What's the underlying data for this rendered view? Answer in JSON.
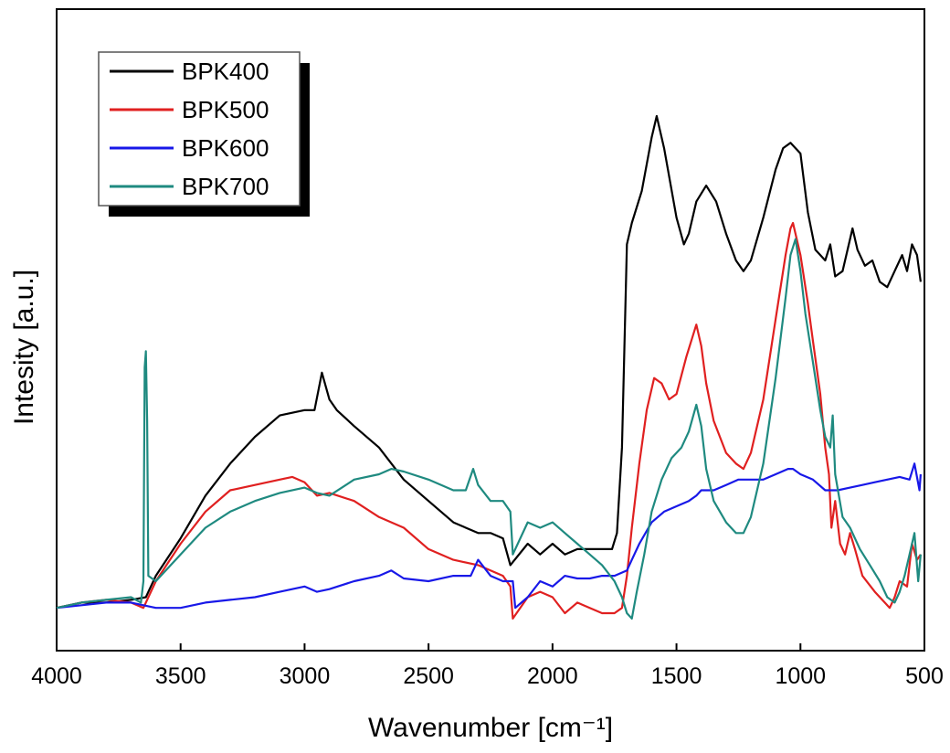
{
  "chart_data": {
    "type": "line",
    "xlabel": "Wavenumber [cm⁻¹]",
    "ylabel": "Intesity [a.u.]",
    "xlim": [
      4000,
      500
    ],
    "x_reversed": true,
    "ylim": [
      -0.08,
      1.12
    ],
    "yticks_visible": false,
    "xticks": [
      4000,
      3500,
      3000,
      2500,
      2000,
      1500,
      1000,
      500
    ],
    "xtick_labels": [
      "4000",
      "3500",
      "3000",
      "2500",
      "2000",
      "1500",
      "1000",
      "500"
    ],
    "grid": false,
    "legend_position": "top-left",
    "series": [
      {
        "name": "BPK400",
        "color": "#000000",
        "points": [
          [
            4000,
            0.0
          ],
          [
            3900,
            0.01
          ],
          [
            3800,
            0.01
          ],
          [
            3700,
            0.015
          ],
          [
            3640,
            0.02
          ],
          [
            3600,
            0.06
          ],
          [
            3500,
            0.13
          ],
          [
            3400,
            0.21
          ],
          [
            3300,
            0.27
          ],
          [
            3200,
            0.32
          ],
          [
            3100,
            0.36
          ],
          [
            3000,
            0.37
          ],
          [
            2960,
            0.37
          ],
          [
            2930,
            0.44
          ],
          [
            2900,
            0.39
          ],
          [
            2870,
            0.37
          ],
          [
            2800,
            0.34
          ],
          [
            2700,
            0.3
          ],
          [
            2600,
            0.24
          ],
          [
            2500,
            0.2
          ],
          [
            2400,
            0.16
          ],
          [
            2300,
            0.14
          ],
          [
            2250,
            0.14
          ],
          [
            2200,
            0.13
          ],
          [
            2170,
            0.08
          ],
          [
            2100,
            0.12
          ],
          [
            2050,
            0.1
          ],
          [
            2000,
            0.12
          ],
          [
            1950,
            0.1
          ],
          [
            1900,
            0.11
          ],
          [
            1850,
            0.11
          ],
          [
            1800,
            0.11
          ],
          [
            1760,
            0.11
          ],
          [
            1740,
            0.14
          ],
          [
            1720,
            0.3
          ],
          [
            1700,
            0.68
          ],
          [
            1680,
            0.72
          ],
          [
            1640,
            0.78
          ],
          [
            1600,
            0.88
          ],
          [
            1580,
            0.92
          ],
          [
            1550,
            0.86
          ],
          [
            1500,
            0.73
          ],
          [
            1470,
            0.68
          ],
          [
            1450,
            0.7
          ],
          [
            1420,
            0.76
          ],
          [
            1380,
            0.79
          ],
          [
            1340,
            0.76
          ],
          [
            1300,
            0.7
          ],
          [
            1260,
            0.65
          ],
          [
            1230,
            0.63
          ],
          [
            1200,
            0.65
          ],
          [
            1150,
            0.73
          ],
          [
            1100,
            0.82
          ],
          [
            1070,
            0.86
          ],
          [
            1040,
            0.87
          ],
          [
            1000,
            0.85
          ],
          [
            970,
            0.74
          ],
          [
            940,
            0.67
          ],
          [
            900,
            0.65
          ],
          [
            880,
            0.68
          ],
          [
            860,
            0.62
          ],
          [
            830,
            0.63
          ],
          [
            790,
            0.71
          ],
          [
            770,
            0.67
          ],
          [
            740,
            0.64
          ],
          [
            710,
            0.65
          ],
          [
            680,
            0.61
          ],
          [
            650,
            0.6
          ],
          [
            620,
            0.63
          ],
          [
            590,
            0.66
          ],
          [
            570,
            0.63
          ],
          [
            550,
            0.68
          ],
          [
            530,
            0.66
          ],
          [
            515,
            0.61
          ]
        ]
      },
      {
        "name": "BPK500",
        "color": "#e02020",
        "points": [
          [
            4000,
            0.0
          ],
          [
            3900,
            0.01
          ],
          [
            3800,
            0.015
          ],
          [
            3700,
            0.01
          ],
          [
            3650,
            0.0
          ],
          [
            3600,
            0.05
          ],
          [
            3500,
            0.12
          ],
          [
            3400,
            0.18
          ],
          [
            3300,
            0.22
          ],
          [
            3200,
            0.23
          ],
          [
            3100,
            0.24
          ],
          [
            3050,
            0.245
          ],
          [
            3000,
            0.235
          ],
          [
            2950,
            0.21
          ],
          [
            2900,
            0.215
          ],
          [
            2800,
            0.2
          ],
          [
            2700,
            0.17
          ],
          [
            2600,
            0.15
          ],
          [
            2500,
            0.11
          ],
          [
            2400,
            0.09
          ],
          [
            2300,
            0.08
          ],
          [
            2250,
            0.07
          ],
          [
            2200,
            0.06
          ],
          [
            2170,
            0.04
          ],
          [
            2160,
            -0.02
          ],
          [
            2100,
            0.02
          ],
          [
            2050,
            0.03
          ],
          [
            2000,
            0.02
          ],
          [
            1950,
            -0.01
          ],
          [
            1900,
            0.01
          ],
          [
            1850,
            0.0
          ],
          [
            1800,
            -0.01
          ],
          [
            1750,
            -0.01
          ],
          [
            1720,
            0.0
          ],
          [
            1700,
            0.06
          ],
          [
            1680,
            0.15
          ],
          [
            1650,
            0.27
          ],
          [
            1620,
            0.37
          ],
          [
            1590,
            0.43
          ],
          [
            1560,
            0.42
          ],
          [
            1530,
            0.39
          ],
          [
            1500,
            0.4
          ],
          [
            1460,
            0.47
          ],
          [
            1420,
            0.53
          ],
          [
            1400,
            0.49
          ],
          [
            1380,
            0.42
          ],
          [
            1350,
            0.35
          ],
          [
            1300,
            0.29
          ],
          [
            1260,
            0.27
          ],
          [
            1230,
            0.26
          ],
          [
            1200,
            0.29
          ],
          [
            1150,
            0.39
          ],
          [
            1100,
            0.54
          ],
          [
            1060,
            0.66
          ],
          [
            1040,
            0.71
          ],
          [
            1030,
            0.72
          ],
          [
            1000,
            0.66
          ],
          [
            970,
            0.57
          ],
          [
            950,
            0.5
          ],
          [
            920,
            0.4
          ],
          [
            900,
            0.3
          ],
          [
            885,
            0.25
          ],
          [
            875,
            0.15
          ],
          [
            860,
            0.2
          ],
          [
            840,
            0.12
          ],
          [
            820,
            0.1
          ],
          [
            800,
            0.14
          ],
          [
            780,
            0.11
          ],
          [
            750,
            0.06
          ],
          [
            700,
            0.03
          ],
          [
            660,
            0.01
          ],
          [
            640,
            0.0
          ],
          [
            620,
            0.02
          ],
          [
            600,
            0.05
          ],
          [
            570,
            0.04
          ],
          [
            550,
            0.12
          ],
          [
            530,
            0.09
          ],
          [
            515,
            0.1
          ]
        ]
      },
      {
        "name": "BPK600",
        "color": "#1818e8",
        "points": [
          [
            4000,
            0.0
          ],
          [
            3900,
            0.005
          ],
          [
            3800,
            0.01
          ],
          [
            3700,
            0.01
          ],
          [
            3600,
            0.0
          ],
          [
            3500,
            0.0
          ],
          [
            3400,
            0.01
          ],
          [
            3300,
            0.015
          ],
          [
            3200,
            0.02
          ],
          [
            3100,
            0.03
          ],
          [
            3000,
            0.04
          ],
          [
            2950,
            0.03
          ],
          [
            2900,
            0.035
          ],
          [
            2800,
            0.05
          ],
          [
            2700,
            0.06
          ],
          [
            2650,
            0.07
          ],
          [
            2600,
            0.055
          ],
          [
            2500,
            0.05
          ],
          [
            2400,
            0.06
          ],
          [
            2330,
            0.06
          ],
          [
            2300,
            0.09
          ],
          [
            2250,
            0.06
          ],
          [
            2200,
            0.05
          ],
          [
            2160,
            0.05
          ],
          [
            2150,
            0.0
          ],
          [
            2100,
            0.02
          ],
          [
            2050,
            0.05
          ],
          [
            2000,
            0.04
          ],
          [
            1950,
            0.06
          ],
          [
            1900,
            0.055
          ],
          [
            1850,
            0.055
          ],
          [
            1800,
            0.06
          ],
          [
            1750,
            0.06
          ],
          [
            1700,
            0.07
          ],
          [
            1680,
            0.09
          ],
          [
            1650,
            0.12
          ],
          [
            1600,
            0.16
          ],
          [
            1550,
            0.18
          ],
          [
            1500,
            0.19
          ],
          [
            1450,
            0.2
          ],
          [
            1420,
            0.21
          ],
          [
            1400,
            0.22
          ],
          [
            1350,
            0.22
          ],
          [
            1300,
            0.23
          ],
          [
            1250,
            0.24
          ],
          [
            1200,
            0.24
          ],
          [
            1150,
            0.24
          ],
          [
            1100,
            0.25
          ],
          [
            1050,
            0.26
          ],
          [
            1030,
            0.26
          ],
          [
            1000,
            0.25
          ],
          [
            950,
            0.24
          ],
          [
            900,
            0.22
          ],
          [
            850,
            0.22
          ],
          [
            800,
            0.225
          ],
          [
            750,
            0.23
          ],
          [
            700,
            0.235
          ],
          [
            650,
            0.24
          ],
          [
            600,
            0.245
          ],
          [
            560,
            0.24
          ],
          [
            540,
            0.27
          ],
          [
            520,
            0.22
          ],
          [
            515,
            0.25
          ]
        ]
      },
      {
        "name": "BPK700",
        "color": "#1f8a80",
        "points": [
          [
            4000,
            0.0
          ],
          [
            3900,
            0.01
          ],
          [
            3800,
            0.015
          ],
          [
            3700,
            0.02
          ],
          [
            3660,
            0.01
          ],
          [
            3650,
            0.05
          ],
          [
            3645,
            0.45
          ],
          [
            3640,
            0.48
          ],
          [
            3635,
            0.35
          ],
          [
            3630,
            0.06
          ],
          [
            3600,
            0.05
          ],
          [
            3500,
            0.1
          ],
          [
            3400,
            0.15
          ],
          [
            3300,
            0.18
          ],
          [
            3200,
            0.2
          ],
          [
            3100,
            0.215
          ],
          [
            3000,
            0.225
          ],
          [
            2950,
            0.215
          ],
          [
            2900,
            0.21
          ],
          [
            2800,
            0.24
          ],
          [
            2700,
            0.25
          ],
          [
            2650,
            0.26
          ],
          [
            2600,
            0.255
          ],
          [
            2500,
            0.24
          ],
          [
            2400,
            0.22
          ],
          [
            2350,
            0.22
          ],
          [
            2320,
            0.26
          ],
          [
            2300,
            0.23
          ],
          [
            2250,
            0.2
          ],
          [
            2200,
            0.2
          ],
          [
            2170,
            0.18
          ],
          [
            2160,
            0.1
          ],
          [
            2100,
            0.16
          ],
          [
            2050,
            0.15
          ],
          [
            2000,
            0.16
          ],
          [
            1950,
            0.14
          ],
          [
            1900,
            0.12
          ],
          [
            1850,
            0.1
          ],
          [
            1800,
            0.08
          ],
          [
            1750,
            0.05
          ],
          [
            1720,
            0.02
          ],
          [
            1700,
            -0.01
          ],
          [
            1680,
            -0.02
          ],
          [
            1660,
            0.03
          ],
          [
            1630,
            0.1
          ],
          [
            1600,
            0.18
          ],
          [
            1560,
            0.24
          ],
          [
            1520,
            0.28
          ],
          [
            1480,
            0.3
          ],
          [
            1450,
            0.33
          ],
          [
            1420,
            0.38
          ],
          [
            1400,
            0.34
          ],
          [
            1380,
            0.26
          ],
          [
            1350,
            0.2
          ],
          [
            1300,
            0.16
          ],
          [
            1260,
            0.14
          ],
          [
            1230,
            0.14
          ],
          [
            1200,
            0.17
          ],
          [
            1150,
            0.27
          ],
          [
            1100,
            0.43
          ],
          [
            1060,
            0.58
          ],
          [
            1040,
            0.66
          ],
          [
            1020,
            0.69
          ],
          [
            1000,
            0.63
          ],
          [
            980,
            0.55
          ],
          [
            950,
            0.46
          ],
          [
            920,
            0.37
          ],
          [
            900,
            0.32
          ],
          [
            880,
            0.3
          ],
          [
            870,
            0.36
          ],
          [
            860,
            0.25
          ],
          [
            830,
            0.17
          ],
          [
            800,
            0.15
          ],
          [
            760,
            0.11
          ],
          [
            720,
            0.08
          ],
          [
            680,
            0.05
          ],
          [
            650,
            0.02
          ],
          [
            620,
            0.01
          ],
          [
            600,
            0.03
          ],
          [
            580,
            0.06
          ],
          [
            560,
            0.1
          ],
          [
            540,
            0.14
          ],
          [
            525,
            0.05
          ],
          [
            515,
            0.1
          ]
        ]
      }
    ]
  }
}
